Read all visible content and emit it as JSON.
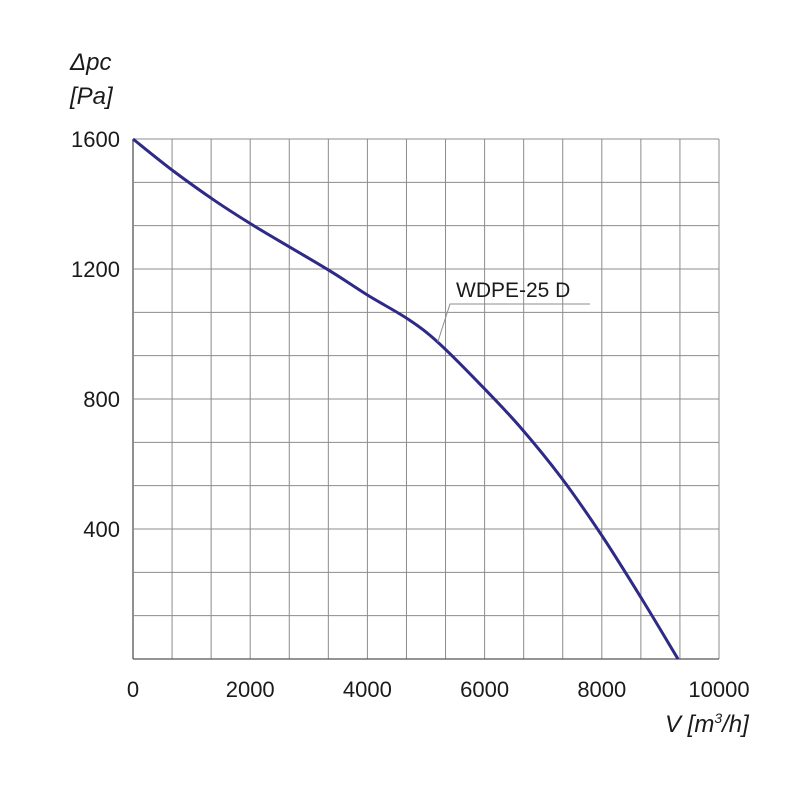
{
  "chart_data": {
    "type": "line",
    "title": "",
    "ylabel_top": "Δpc",
    "ylabel_bottom": "[Pa]",
    "xlabel_prefix": "V [m",
    "xlabel_sup": "3",
    "xlabel_suffix": "/h]",
    "xlim": [
      0,
      10000
    ],
    "ylim": [
      0,
      1600
    ],
    "x_major_ticks": [
      "0",
      "2000",
      "4000",
      "6000",
      "8000",
      "10000"
    ],
    "y_major_ticks": [
      "400",
      "800",
      "1200",
      "1600"
    ],
    "grid": true,
    "series": [
      {
        "name": "WDPE-25 D",
        "color": "#2e2a85",
        "x": [
          0,
          700,
          1400,
          2000,
          2700,
          3400,
          4000,
          4700,
          5200,
          5900,
          6600,
          7300,
          8000,
          8700,
          9300
        ],
        "y": [
          1600,
          1500,
          1410,
          1340,
          1265,
          1190,
          1120,
          1045,
          975,
          850,
          715,
          560,
          380,
          180,
          0
        ]
      }
    ]
  }
}
